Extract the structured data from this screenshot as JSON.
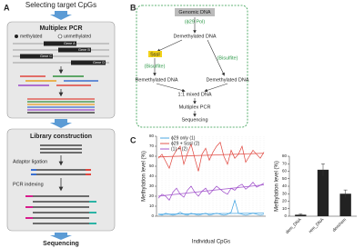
{
  "panel_labels": [
    "A",
    "B",
    "C"
  ],
  "panel_a": {
    "heading": "Selecting target CpGs",
    "pcr_box": {
      "title": "Multiplex PCR",
      "legend": [
        "methylated",
        "unmethylated"
      ],
      "genes": [
        "Gene A",
        "Gene B",
        "Gene C",
        "Gene D"
      ]
    },
    "library_box": {
      "title": "Library construction",
      "steps": [
        "Adaptor ligation",
        "PCR indexing"
      ]
    },
    "footer": "Sequencing"
  },
  "panel_b": {
    "nodes": [
      "Genomic DNA",
      "(ϕ29 Pol)",
      "Demethylated DNA",
      "SssI",
      "(Bisulfite)",
      "(Bisulfite)",
      "Remethylated DNA",
      "Demethylated DNA",
      "1:1 mixed DNA",
      "Multiplex PCR",
      "Sequencing"
    ]
  },
  "chart_data": [
    {
      "type": "line",
      "ylabel": "Methylation level (%)",
      "xlabel": "Individual CpGs",
      "categories": [
        null,
        null,
        null,
        null,
        null,
        null,
        null,
        null,
        null,
        null,
        null,
        null,
        null,
        null,
        null,
        null,
        null,
        null,
        null,
        null,
        null,
        null,
        null,
        null,
        null,
        null,
        null,
        null,
        null,
        null
      ],
      "series": [
        {
          "name": "ϕ29 only  (1)",
          "color": "#3aa0e0",
          "values": [
            2,
            1,
            3,
            2,
            1,
            2,
            4,
            2,
            1,
            3,
            2,
            1,
            2,
            3,
            1,
            2,
            3,
            2,
            1,
            2,
            4,
            16,
            3,
            2,
            1,
            2,
            3,
            2,
            1,
            2
          ]
        },
        {
          "name": "ϕ29 + SssI  (2)",
          "color": "#e0443c",
          "values": [
            58,
            62,
            55,
            48,
            60,
            66,
            70,
            52,
            63,
            72,
            58,
            45,
            62,
            68,
            56,
            64,
            70,
            74,
            60,
            52,
            66,
            58,
            62,
            70,
            54,
            60,
            66,
            62,
            58,
            64
          ]
        },
        {
          "name": "(1) + (2)",
          "color": "#9a45c8",
          "values": [
            18,
            22,
            20,
            16,
            24,
            28,
            22,
            19,
            26,
            30,
            24,
            20,
            25,
            28,
            22,
            26,
            30,
            27,
            24,
            22,
            28,
            26,
            30,
            32,
            27,
            30,
            34,
            29,
            31,
            33
          ]
        }
      ],
      "ylim": [
        0,
        80
      ],
      "yticks": [
        0,
        10,
        20,
        30,
        40,
        50,
        60,
        70,
        80
      ],
      "trend_lines": true,
      "legend": "upper-left"
    },
    {
      "type": "bar",
      "ylabel": "Methylation level (%)",
      "categories": [
        "dem_DNA",
        "rem_DNA",
        "dem/rem"
      ],
      "values": [
        2,
        62,
        30
      ],
      "errors": [
        1,
        8,
        5
      ],
      "color": "#222222",
      "ylim": [
        0,
        80
      ],
      "yticks": [
        0,
        10,
        20,
        30,
        40,
        50,
        60,
        70,
        80
      ]
    }
  ]
}
